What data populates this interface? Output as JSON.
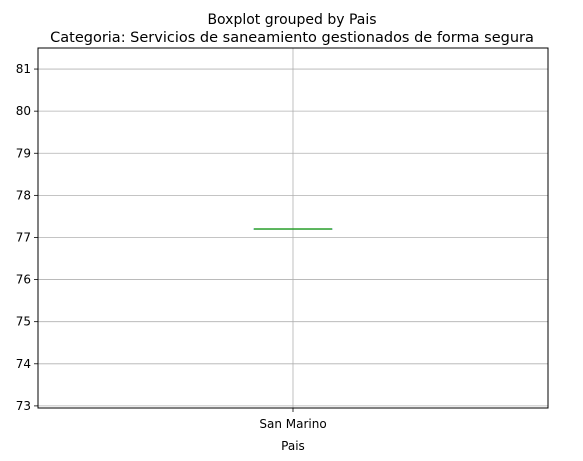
{
  "chart_data": {
    "type": "box",
    "suptitle": "Boxplot grouped by Pais",
    "title": "Categoria: Servicios de saneamiento gestionados de forma segura",
    "xlabel": "Pais",
    "ylabel": "",
    "categories": [
      "San Marino"
    ],
    "boxes": [
      {
        "category": "San Marino",
        "min": 77.2,
        "q1": 77.2,
        "median": 77.2,
        "q3": 77.2,
        "max": 77.2
      }
    ],
    "ylim": [
      72.95,
      81.5
    ],
    "yticks": [
      73,
      74,
      75,
      76,
      77,
      78,
      79,
      80,
      81
    ],
    "grid": true,
    "colors": {
      "box": "#1f77b4",
      "median": "#2ca02c",
      "whisker": "#1f77b4",
      "grid": "#b0b0b0"
    }
  }
}
